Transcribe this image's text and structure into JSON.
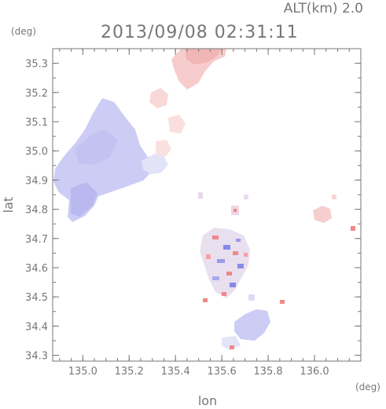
{
  "header": {
    "altitude_label": "ALT(km) 2.0",
    "timestamp": "2013/09/08 02:31:11",
    "y_unit": "(deg)",
    "x_unit": "(deg)"
  },
  "axes": {
    "xlabel": "lon",
    "ylabel": "lat",
    "xlim": [
      134.87,
      136.2
    ],
    "ylim": [
      34.28,
      35.35
    ],
    "x_ticks": [
      "135.0",
      "135.2",
      "135.4",
      "135.6",
      "135.8",
      "136.0"
    ],
    "y_ticks": [
      "34.3",
      "34.4",
      "34.5",
      "34.6",
      "34.7",
      "34.8",
      "34.9",
      "35.0",
      "35.1",
      "35.2",
      "35.3"
    ]
  },
  "colors": {
    "positive": "#f08888",
    "negative": "#8888e8",
    "frame": "#777777"
  }
}
